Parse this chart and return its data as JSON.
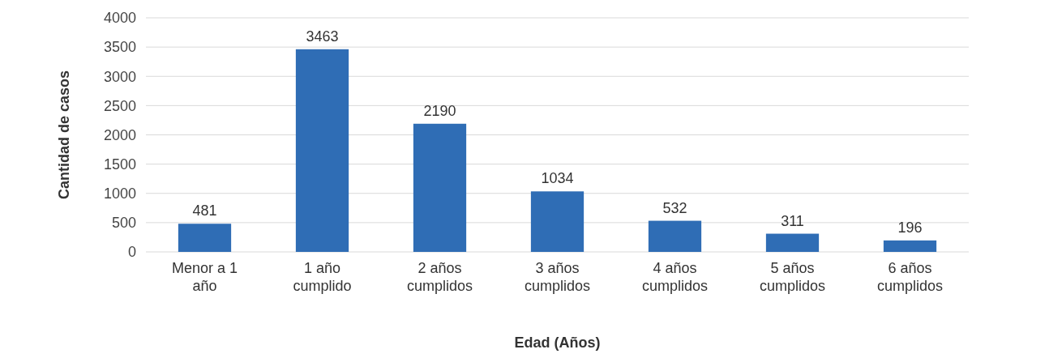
{
  "chart_data": {
    "type": "bar",
    "xlabel": "Edad (Años)",
    "ylabel": "Cantidad de casos",
    "categories": [
      "Menor a 1 año",
      "1 año cumplido",
      "2 años cumplidos",
      "3 años cumplidos",
      "4 años cumplidos",
      "5 años cumplidos",
      "6 años cumplidos"
    ],
    "values": [
      481,
      3463,
      2190,
      1034,
      532,
      311,
      196
    ],
    "color": "#2f6db5",
    "ylim": [
      0,
      4000
    ],
    "yticks": [
      0,
      500,
      1000,
      1500,
      2000,
      2500,
      3000,
      3500,
      4000
    ],
    "grid": "y",
    "data_labels": true
  }
}
